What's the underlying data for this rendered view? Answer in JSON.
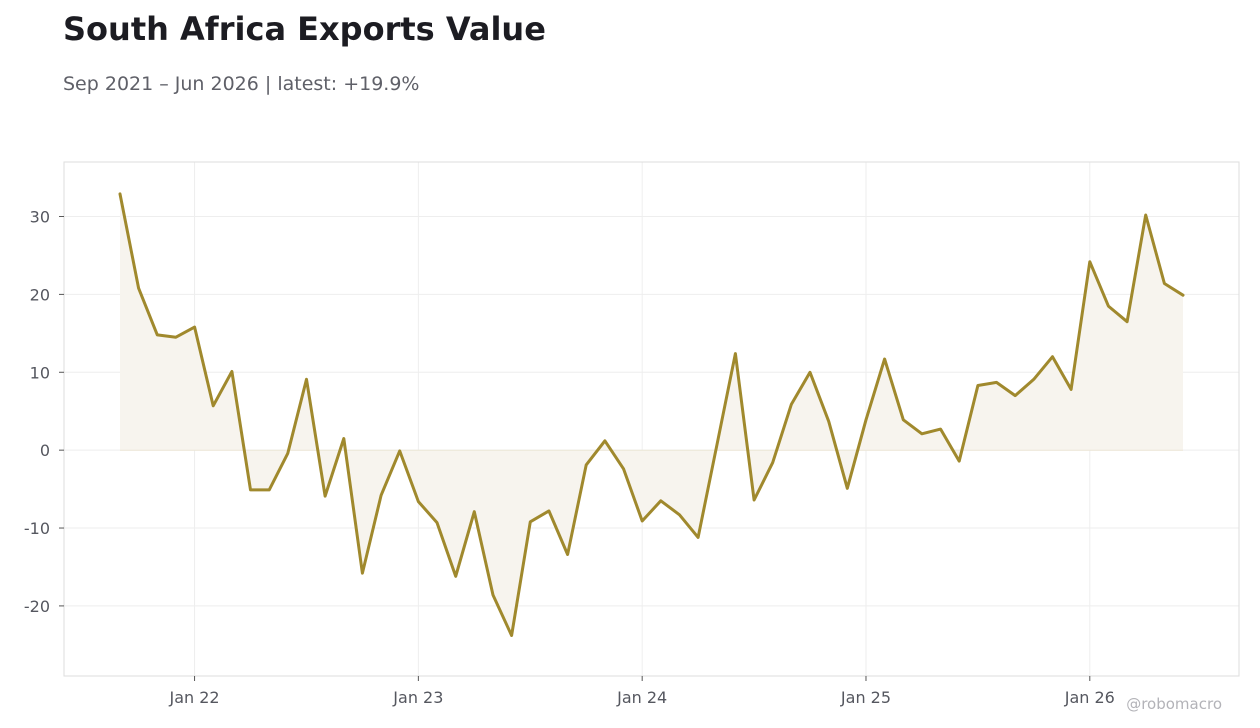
{
  "title": "South Africa Exports Value",
  "subtitle": "Sep 2021 – Jun 2026 | latest: +19.9%",
  "watermark": "@robomacro",
  "colors": {
    "line": "#a0892d",
    "fill": "#f7f4ee",
    "grid": "#eeeeee",
    "frame": "#dddddd"
  },
  "chart_data": {
    "type": "line",
    "title": "South Africa Exports Value",
    "subtitle": "Sep 2021 – Jun 2026 | latest: +19.9%",
    "xlabel": "",
    "ylabel": "",
    "x_tick_labels": [
      "Jan 22",
      "Jan 23",
      "Jan 24",
      "Jan 25",
      "Jan 26"
    ],
    "y_tick_labels": [
      "-20",
      "-10",
      "0",
      "10",
      "20",
      "30"
    ],
    "y_ticks": [
      -20,
      -10,
      0,
      10,
      20,
      30
    ],
    "ylim": [
      -29,
      37
    ],
    "xlim": [
      "2021-06",
      "2026-09"
    ],
    "grid": true,
    "area_fill_to_zero": true,
    "series": [
      {
        "x": [
          "2021-09",
          "2021-10",
          "2021-11",
          "2021-12",
          "2022-01",
          "2022-02",
          "2022-03",
          "2022-04",
          "2022-05",
          "2022-06",
          "2022-07",
          "2022-08",
          "2022-09",
          "2022-10",
          "2022-11",
          "2022-12",
          "2023-01",
          "2023-02",
          "2023-03",
          "2023-04",
          "2023-05",
          "2023-06",
          "2023-07",
          "2023-08",
          "2023-09",
          "2023-10",
          "2023-11",
          "2023-12",
          "2024-01",
          "2024-02",
          "2024-03",
          "2024-04",
          "2024-05",
          "2024-06",
          "2024-07",
          "2024-08",
          "2024-09",
          "2024-10",
          "2024-11",
          "2024-12",
          "2025-01",
          "2025-02",
          "2025-03",
          "2025-04",
          "2025-05",
          "2025-06",
          "2025-07",
          "2025-08",
          "2025-09",
          "2025-10",
          "2025-11",
          "2025-12",
          "2026-01",
          "2026-02",
          "2026-03",
          "2026-04",
          "2026-05",
          "2026-06"
        ],
        "values": [
          32.9,
          20.8,
          14.8,
          14.5,
          15.8,
          5.7,
          10.1,
          -5.1,
          -5.1,
          -0.4,
          9.1,
          -5.9,
          1.5,
          -15.8,
          -5.8,
          -0.1,
          -6.6,
          -9.3,
          -16.2,
          -7.9,
          -18.6,
          -23.8,
          -9.2,
          -7.8,
          -13.4,
          -1.9,
          1.2,
          -2.4,
          -9.1,
          -6.5,
          -8.3,
          -11.2,
          0.6,
          12.4,
          -6.4,
          -1.6,
          5.9,
          10.0,
          3.7,
          -4.9,
          3.9,
          11.7,
          3.9,
          2.1,
          2.7,
          -1.4,
          8.3,
          8.7,
          7.0,
          9.1,
          12.0,
          7.8,
          24.2,
          18.5,
          16.5,
          30.2,
          21.4,
          19.9
        ]
      }
    ]
  }
}
